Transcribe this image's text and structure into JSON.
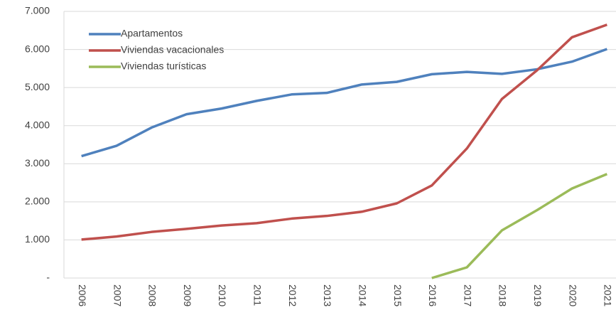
{
  "chart_data": {
    "type": "line",
    "categories": [
      "2006",
      "2007",
      "2008",
      "2009",
      "2010",
      "2011",
      "2012",
      "2013",
      "2014",
      "2015",
      "2016",
      "2017",
      "2018",
      "2019",
      "2020",
      "2021"
    ],
    "series": [
      {
        "name": "Apartamentos",
        "color": "#4f81bd",
        "values": [
          3200,
          3470,
          3950,
          4300,
          4450,
          4650,
          4820,
          4860,
          5080,
          5150,
          5350,
          5410,
          5360,
          5480,
          5680,
          6010
        ]
      },
      {
        "name": "Viviendas vacacionales",
        "color": "#c0504d",
        "values": [
          1010,
          1090,
          1210,
          1290,
          1380,
          1440,
          1560,
          1630,
          1740,
          1960,
          2430,
          3400,
          4700,
          5450,
          6320,
          6650
        ]
      },
      {
        "name": "Viviendas turísticas",
        "color": "#9bbb59",
        "values": [
          null,
          null,
          null,
          null,
          null,
          null,
          null,
          null,
          null,
          null,
          0,
          280,
          1250,
          1780,
          2350,
          2730
        ]
      }
    ],
    "ylim": [
      0,
      7000
    ],
    "yticks": [
      {
        "value": 0,
        "label": "-"
      },
      {
        "value": 1000,
        "label": "1.000"
      },
      {
        "value": 2000,
        "label": "2.000"
      },
      {
        "value": 3000,
        "label": "3.000"
      },
      {
        "value": 4000,
        "label": "4.000"
      },
      {
        "value": 5000,
        "label": "5.000"
      },
      {
        "value": 6000,
        "label": "6.000"
      },
      {
        "value": 7000,
        "label": "7.000"
      }
    ],
    "grid": true,
    "legend": "upper-left"
  }
}
